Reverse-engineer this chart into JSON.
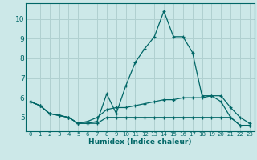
{
  "xlabel": "Humidex (Indice chaleur)",
  "xlim": [
    -0.5,
    23.5
  ],
  "ylim": [
    4.3,
    10.8
  ],
  "yticks": [
    5,
    6,
    7,
    8,
    9,
    10
  ],
  "xticks": [
    0,
    1,
    2,
    3,
    4,
    5,
    6,
    7,
    8,
    9,
    10,
    11,
    12,
    13,
    14,
    15,
    16,
    17,
    18,
    19,
    20,
    21,
    22,
    23
  ],
  "bg_color": "#cce8e8",
  "grid_color": "#b0d0d0",
  "line_color": "#006666",
  "lines": [
    {
      "x": [
        0,
        1,
        2,
        3,
        4,
        5,
        6,
        7,
        8,
        9,
        10,
        11,
        12,
        13,
        14,
        15,
        16,
        17,
        18,
        19,
        20,
        21,
        22,
        23
      ],
      "y": [
        5.8,
        5.6,
        5.2,
        5.1,
        5.0,
        4.7,
        4.7,
        4.8,
        6.2,
        5.2,
        6.6,
        7.8,
        8.5,
        9.1,
        10.4,
        9.1,
        9.1,
        8.3,
        6.1,
        6.1,
        5.8,
        5.0,
        4.6,
        4.6
      ]
    },
    {
      "x": [
        0,
        1,
        2,
        3,
        4,
        5,
        6,
        7,
        8,
        9,
        10,
        11,
        12,
        13,
        14,
        15,
        16,
        17,
        18,
        19,
        20,
        21,
        22,
        23
      ],
      "y": [
        5.8,
        5.6,
        5.2,
        5.1,
        5.0,
        4.7,
        4.8,
        5.0,
        5.4,
        5.5,
        5.5,
        5.6,
        5.7,
        5.8,
        5.9,
        5.9,
        6.0,
        6.0,
        6.0,
        6.1,
        6.1,
        5.5,
        5.0,
        4.7
      ]
    },
    {
      "x": [
        0,
        1,
        2,
        3,
        4,
        5,
        6,
        7,
        8,
        9,
        10,
        11,
        12,
        13,
        14,
        15,
        16,
        17,
        18,
        19,
        20,
        21,
        22,
        23
      ],
      "y": [
        5.8,
        5.6,
        5.2,
        5.1,
        5.0,
        4.7,
        4.7,
        4.7,
        5.0,
        5.0,
        5.0,
        5.0,
        5.0,
        5.0,
        5.0,
        5.0,
        5.0,
        5.0,
        5.0,
        5.0,
        5.0,
        5.0,
        4.6,
        4.6
      ]
    }
  ]
}
